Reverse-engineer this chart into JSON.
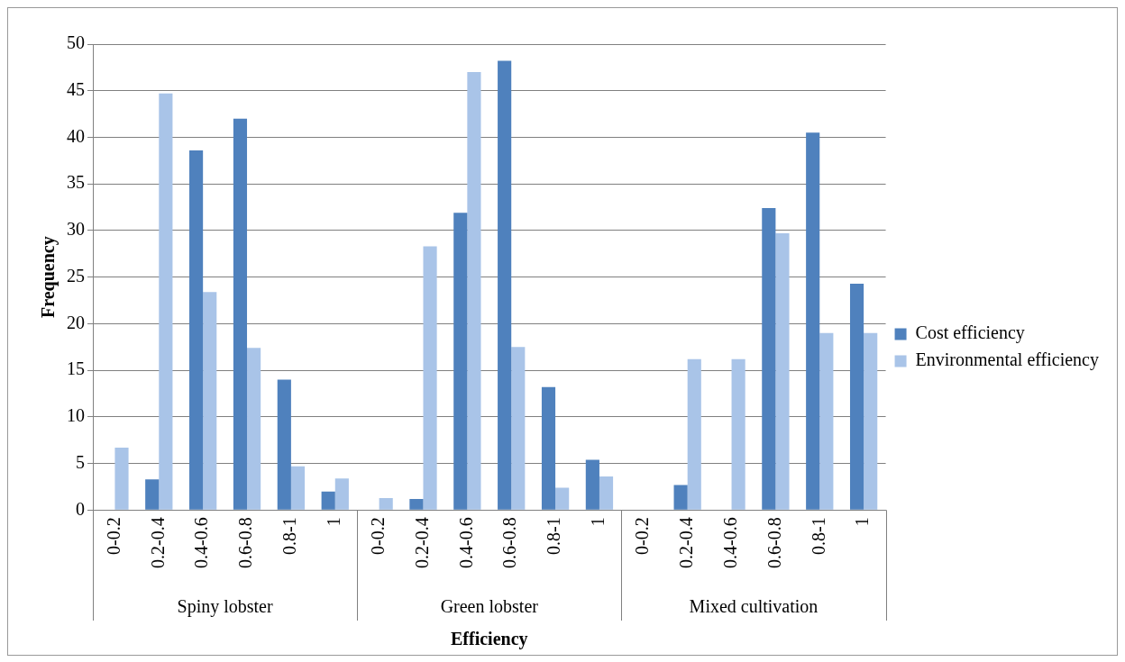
{
  "chart_data": {
    "type": "bar",
    "xlabel": "Efficiency",
    "ylabel": "Frequency",
    "categories": [
      "0-0.2",
      "0.2-0.4",
      "0.4-0.6",
      "0.6-0.8",
      "0.8-1",
      "1",
      "0-0.2",
      "0.2-0.4",
      "0.4-0.6",
      "0.6-0.8",
      "0.8-1",
      "1",
      "0-0.2",
      "0.2-0.4",
      "0.4-0.6",
      "0.6-0.8",
      "0.8-1",
      "1"
    ],
    "annotations": [
      "Spiny lobster",
      "Green lobster",
      "Mixed cultivation"
    ],
    "series": [
      {
        "name": "Cost efficiency",
        "color": "#4f81bd",
        "values": [
          0,
          3.3,
          38.6,
          42.0,
          14.0,
          2.0,
          0,
          1.2,
          31.9,
          48.2,
          13.2,
          5.4,
          0,
          2.7,
          0,
          32.4,
          40.5,
          24.3
        ]
      },
      {
        "name": "Environmental efficiency",
        "color": "#a9c4e8",
        "values": [
          6.7,
          44.7,
          23.4,
          17.4,
          4.7,
          3.4,
          1.3,
          28.3,
          47.0,
          17.5,
          2.4,
          3.6,
          0,
          16.2,
          16.2,
          29.7,
          19.0,
          19.0
        ]
      }
    ],
    "ylim": [
      0,
      50
    ],
    "yticks": [
      0,
      5,
      10,
      15,
      20,
      25,
      30,
      35,
      40,
      45,
      50
    ],
    "grid": "y",
    "legend": "right"
  }
}
